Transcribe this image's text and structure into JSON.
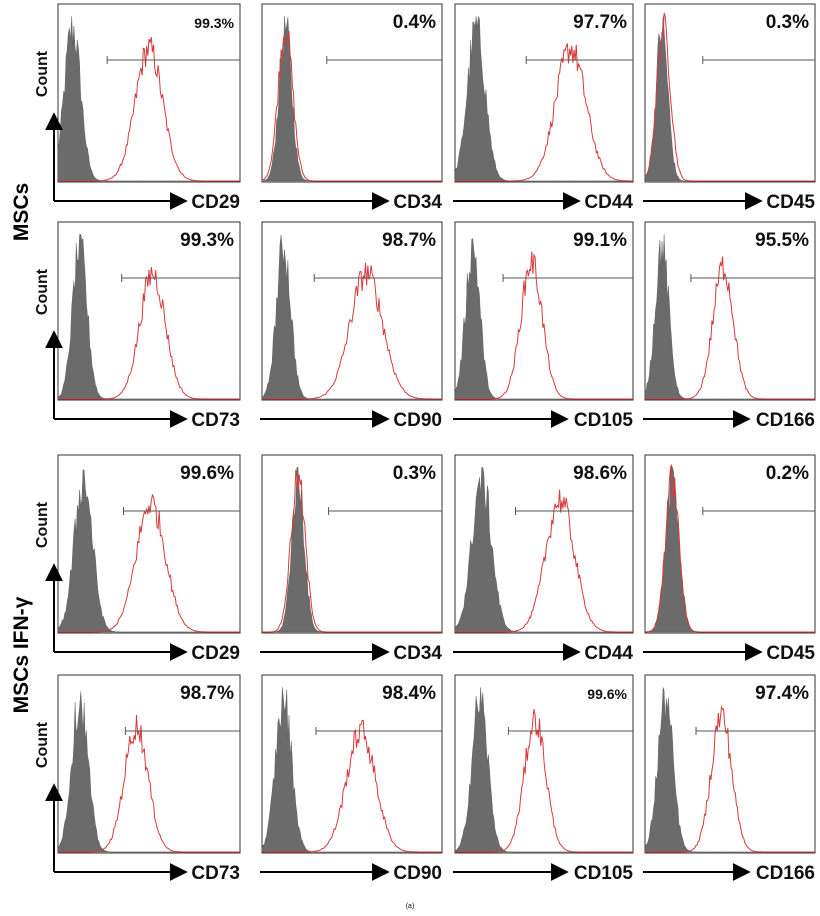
{
  "caption": "(a)",
  "group_labels": [
    "MSCs",
    "MSCs IFN-γ"
  ],
  "count_label": "Count",
  "colors": {
    "isotype_fill": "#6b6b6b",
    "stained_line": "#d83a3a",
    "axis": "#000000",
    "gate": "#555555"
  },
  "chart_data": [
    {
      "type": "histogram",
      "group": "MSCs",
      "marker": "CD29",
      "percent": "99.3%",
      "isotype_peak": 0.08,
      "isotype_width": 0.045,
      "stained_peak": 0.5,
      "stained_width": 0.075,
      "stained_height": 0.82,
      "gate_start": 0.27
    },
    {
      "type": "histogram",
      "group": "MSCs",
      "marker": "CD34",
      "percent": "0.4%",
      "isotype_peak": 0.13,
      "isotype_width": 0.035,
      "stained_peak": 0.13,
      "stained_width": 0.04,
      "stained_height": 0.95,
      "gate_start": 0.36
    },
    {
      "type": "histogram",
      "group": "MSCs",
      "marker": "CD44",
      "percent": "97.7%",
      "isotype_peak": 0.12,
      "isotype_width": 0.05,
      "stained_peak": 0.65,
      "stained_width": 0.085,
      "stained_height": 0.82,
      "gate_start": 0.4
    },
    {
      "type": "histogram",
      "group": "MSCs",
      "marker": "CD45",
      "percent": "0.3%",
      "isotype_peak": 0.1,
      "isotype_width": 0.035,
      "stained_peak": 0.11,
      "stained_width": 0.04,
      "stained_height": 0.95,
      "gate_start": 0.34
    },
    {
      "type": "histogram",
      "group": "MSCs",
      "marker": "CD73",
      "percent": "99.3%",
      "isotype_peak": 0.12,
      "isotype_width": 0.04,
      "stained_peak": 0.52,
      "stained_width": 0.07,
      "stained_height": 0.78,
      "gate_start": 0.35
    },
    {
      "type": "histogram",
      "group": "MSCs",
      "marker": "CD90",
      "percent": "98.7%",
      "isotype_peak": 0.12,
      "isotype_width": 0.04,
      "stained_peak": 0.58,
      "stained_width": 0.09,
      "stained_height": 0.78,
      "gate_start": 0.29
    },
    {
      "type": "histogram",
      "group": "MSCs",
      "marker": "CD105",
      "percent": "99.1%",
      "isotype_peak": 0.1,
      "isotype_width": 0.04,
      "stained_peak": 0.43,
      "stained_width": 0.06,
      "stained_height": 0.85,
      "gate_start": 0.27
    },
    {
      "type": "histogram",
      "group": "MSCs",
      "marker": "CD166",
      "percent": "95.5%",
      "isotype_peak": 0.1,
      "isotype_width": 0.04,
      "stained_peak": 0.46,
      "stained_width": 0.06,
      "stained_height": 0.82,
      "gate_start": 0.27
    },
    {
      "type": "histogram",
      "group": "MSCs IFN-γ",
      "marker": "CD29",
      "percent": "99.6%",
      "isotype_peak": 0.14,
      "isotype_width": 0.05,
      "stained_peak": 0.51,
      "stained_width": 0.08,
      "stained_height": 0.8,
      "gate_start": 0.36
    },
    {
      "type": "histogram",
      "group": "MSCs IFN-γ",
      "marker": "CD34",
      "percent": "0.3%",
      "isotype_peak": 0.2,
      "isotype_width": 0.035,
      "stained_peak": 0.2,
      "stained_width": 0.04,
      "stained_height": 0.95,
      "gate_start": 0.37
    },
    {
      "type": "histogram",
      "group": "MSCs IFN-γ",
      "marker": "CD44",
      "percent": "98.6%",
      "isotype_peak": 0.15,
      "isotype_width": 0.055,
      "stained_peak": 0.59,
      "stained_width": 0.08,
      "stained_height": 0.82,
      "gate_start": 0.34
    },
    {
      "type": "histogram",
      "group": "MSCs IFN-γ",
      "marker": "CD45",
      "percent": "0.2%",
      "isotype_peak": 0.16,
      "isotype_width": 0.04,
      "stained_peak": 0.16,
      "stained_width": 0.04,
      "stained_height": 0.95,
      "gate_start": 0.34
    },
    {
      "type": "histogram",
      "group": "MSCs IFN-γ",
      "marker": "CD73",
      "percent": "98.7%",
      "isotype_peak": 0.12,
      "isotype_width": 0.045,
      "stained_peak": 0.43,
      "stained_width": 0.065,
      "stained_height": 0.78,
      "gate_start": 0.37
    },
    {
      "type": "histogram",
      "group": "MSCs IFN-γ",
      "marker": "CD90",
      "percent": "98.4%",
      "isotype_peak": 0.12,
      "isotype_width": 0.045,
      "stained_peak": 0.55,
      "stained_width": 0.08,
      "stained_height": 0.75,
      "gate_start": 0.3
    },
    {
      "type": "histogram",
      "group": "MSCs IFN-γ",
      "marker": "CD105",
      "percent": "99.6%",
      "isotype_peak": 0.14,
      "isotype_width": 0.045,
      "stained_peak": 0.45,
      "stained_width": 0.06,
      "stained_height": 0.82,
      "gate_start": 0.3
    },
    {
      "type": "histogram",
      "group": "MSCs IFN-γ",
      "marker": "CD166",
      "percent": "97.4%",
      "isotype_peak": 0.12,
      "isotype_width": 0.045,
      "stained_peak": 0.45,
      "stained_width": 0.06,
      "stained_height": 0.85,
      "gate_start": 0.3
    }
  ]
}
